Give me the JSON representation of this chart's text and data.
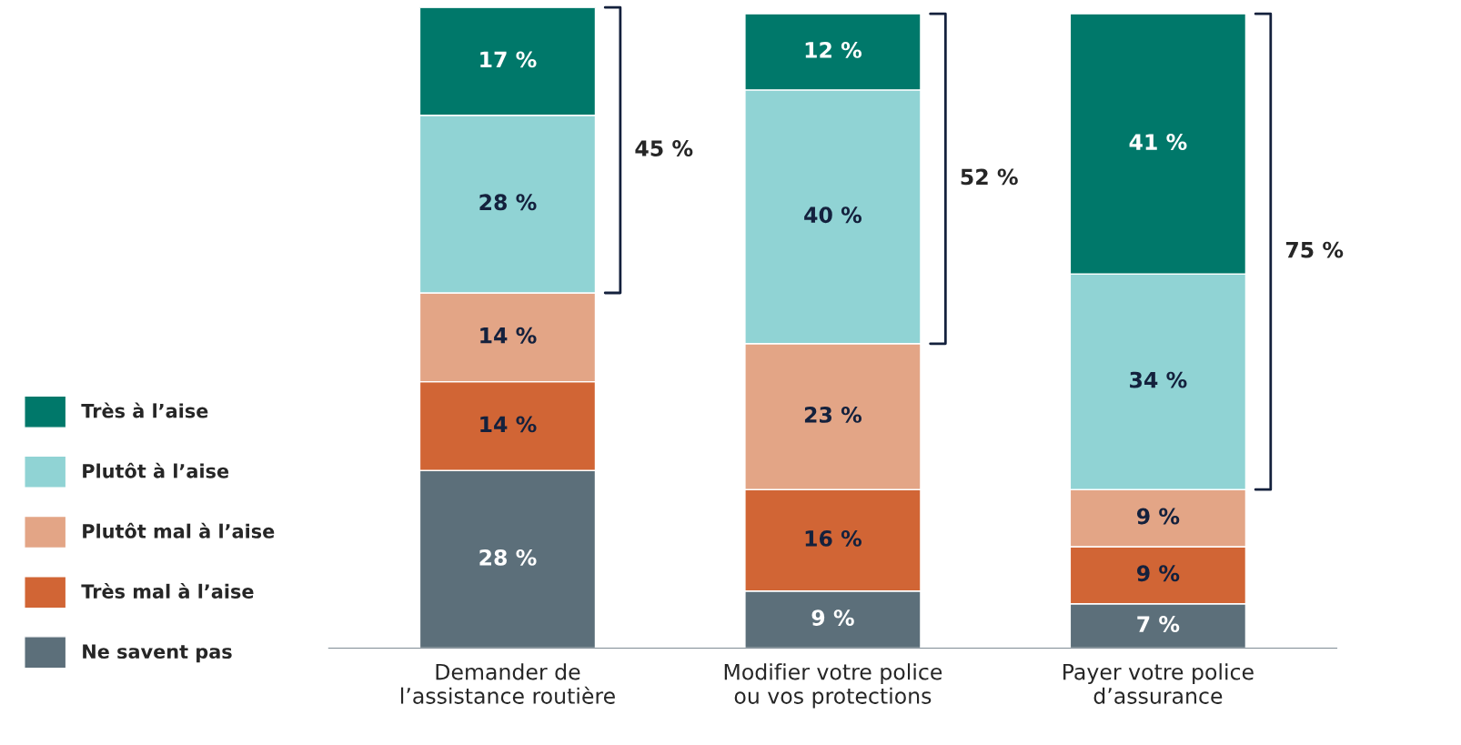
{
  "chart_data": {
    "type": "bar",
    "stacked": true,
    "categories": [
      "Demander de\nl’assistance routière",
      "Modifier votre police\nou vos protections",
      "Payer votre police\nd’assurance"
    ],
    "series": [
      {
        "name": "Ne savent pas",
        "color": "#5c6f7a",
        "values": [
          28,
          9,
          7
        ],
        "value_labels": [
          "28 %",
          "9 %",
          "7 %"
        ]
      },
      {
        "name": "Très mal à l’aise",
        "color": "#d16535",
        "values": [
          14,
          16,
          9
        ],
        "value_labels": [
          "14 %",
          "16 %",
          "9 %"
        ]
      },
      {
        "name": "Plutôt mal à l’aise",
        "color": "#e3a586",
        "values": [
          14,
          23,
          9
        ],
        "value_labels": [
          "14 %",
          "23 %",
          "9 %"
        ]
      },
      {
        "name": "Plutôt à l’aise",
        "color": "#90d3d4",
        "values": [
          28,
          40,
          34
        ],
        "value_labels": [
          "28 %",
          "40 %",
          "34 %"
        ]
      },
      {
        "name": "Très à l’aise",
        "color": "#00786a",
        "values": [
          17,
          12,
          41
        ],
        "value_labels": [
          "17 %",
          "12 %",
          "41 %"
        ]
      }
    ],
    "annotations": [
      "45 %",
      "52 %",
      "75 %"
    ],
    "legend": "left",
    "grid": false
  }
}
